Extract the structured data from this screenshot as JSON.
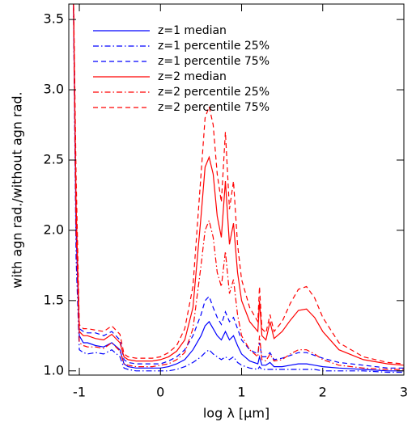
{
  "chart_data": {
    "type": "line",
    "xlabel": "log λ [μm]",
    "ylabel": "with agn rad./without agn rad.",
    "x": [
      -1.08,
      -1.04,
      -1.0,
      -0.95,
      -0.9,
      -0.8,
      -0.7,
      -0.6,
      -0.5,
      -0.45,
      -0.4,
      -0.3,
      -0.2,
      -0.1,
      0,
      0.1,
      0.2,
      0.3,
      0.4,
      0.5,
      0.55,
      0.6,
      0.65,
      0.7,
      0.75,
      0.8,
      0.85,
      0.9,
      0.95,
      1.0,
      1.1,
      1.2,
      1.22,
      1.25,
      1.3,
      1.35,
      1.4,
      1.5,
      1.6,
      1.7,
      1.8,
      1.9,
      2.0,
      2.2,
      2.5,
      2.8,
      3.0
    ],
    "series": [
      {
        "name": "z=1 median",
        "color": "#0000ff",
        "dash": "solid",
        "values": [
          4.0,
          2.0,
          1.25,
          1.2,
          1.2,
          1.18,
          1.17,
          1.2,
          1.15,
          1.05,
          1.03,
          1.02,
          1.02,
          1.02,
          1.02,
          1.03,
          1.05,
          1.08,
          1.15,
          1.25,
          1.32,
          1.35,
          1.3,
          1.25,
          1.22,
          1.28,
          1.22,
          1.25,
          1.18,
          1.12,
          1.07,
          1.05,
          1.1,
          1.04,
          1.04,
          1.06,
          1.03,
          1.03,
          1.04,
          1.05,
          1.05,
          1.04,
          1.03,
          1.02,
          1.01,
          1.0,
          1.0
        ]
      },
      {
        "name": "z=1 percentile 25%",
        "color": "#0000ff",
        "dash": "dashdot",
        "values": [
          4.0,
          1.8,
          1.15,
          1.13,
          1.12,
          1.13,
          1.12,
          1.15,
          1.1,
          1.02,
          1.01,
          1.0,
          1.0,
          1.0,
          1.0,
          1.0,
          1.01,
          1.03,
          1.06,
          1.1,
          1.13,
          1.15,
          1.12,
          1.1,
          1.08,
          1.1,
          1.08,
          1.1,
          1.06,
          1.04,
          1.02,
          1.01,
          1.03,
          1.01,
          1.01,
          1.01,
          1.01,
          1.01,
          1.01,
          1.01,
          1.01,
          1.01,
          1.0,
          1.0,
          1.0,
          0.99,
          0.99
        ]
      },
      {
        "name": "z=1 percentile 75%",
        "color": "#0000ff",
        "dash": "dashed",
        "values": [
          4.0,
          2.2,
          1.3,
          1.28,
          1.27,
          1.27,
          1.25,
          1.28,
          1.22,
          1.08,
          1.06,
          1.05,
          1.05,
          1.05,
          1.05,
          1.07,
          1.1,
          1.15,
          1.25,
          1.4,
          1.5,
          1.53,
          1.45,
          1.38,
          1.33,
          1.42,
          1.35,
          1.38,
          1.3,
          1.22,
          1.15,
          1.12,
          1.2,
          1.1,
          1.1,
          1.13,
          1.08,
          1.09,
          1.11,
          1.13,
          1.13,
          1.11,
          1.09,
          1.06,
          1.04,
          1.02,
          1.02
        ]
      },
      {
        "name": "z=2 median",
        "color": "#ff0000",
        "dash": "solid",
        "values": [
          4.0,
          2.2,
          1.28,
          1.25,
          1.25,
          1.23,
          1.22,
          1.26,
          1.2,
          1.1,
          1.08,
          1.07,
          1.07,
          1.07,
          1.08,
          1.1,
          1.14,
          1.22,
          1.45,
          2.1,
          2.45,
          2.52,
          2.4,
          2.1,
          1.95,
          2.35,
          1.9,
          2.05,
          1.7,
          1.5,
          1.35,
          1.28,
          1.5,
          1.25,
          1.22,
          1.35,
          1.23,
          1.28,
          1.36,
          1.43,
          1.44,
          1.38,
          1.28,
          1.15,
          1.08,
          1.05,
          1.04
        ]
      },
      {
        "name": "z=2 percentile 25%",
        "color": "#ff0000",
        "dash": "dashdot",
        "values": [
          4.0,
          2.0,
          1.2,
          1.18,
          1.17,
          1.17,
          1.16,
          1.2,
          1.14,
          1.05,
          1.04,
          1.03,
          1.03,
          1.03,
          1.04,
          1.05,
          1.08,
          1.13,
          1.3,
          1.75,
          2.0,
          2.07,
          1.95,
          1.7,
          1.6,
          1.85,
          1.55,
          1.65,
          1.4,
          1.25,
          1.15,
          1.1,
          1.25,
          1.08,
          1.07,
          1.12,
          1.07,
          1.08,
          1.12,
          1.15,
          1.15,
          1.12,
          1.08,
          1.04,
          1.02,
          1.01,
          1.01
        ]
      },
      {
        "name": "z=2 percentile 75%",
        "color": "#ff0000",
        "dash": "dashed",
        "values": [
          4.0,
          2.4,
          1.33,
          1.3,
          1.3,
          1.29,
          1.28,
          1.32,
          1.26,
          1.12,
          1.1,
          1.09,
          1.09,
          1.09,
          1.1,
          1.13,
          1.18,
          1.3,
          1.6,
          2.4,
          2.8,
          2.88,
          2.75,
          2.4,
          2.2,
          2.7,
          2.15,
          2.35,
          1.9,
          1.65,
          1.45,
          1.35,
          1.6,
          1.3,
          1.27,
          1.4,
          1.28,
          1.35,
          1.48,
          1.58,
          1.6,
          1.52,
          1.38,
          1.2,
          1.1,
          1.06,
          1.05
        ]
      }
    ],
    "xlim": [
      -1.13,
      3.0
    ],
    "ylim": [
      0.97,
      3.61
    ],
    "xticks": [
      -1,
      0,
      1,
      2,
      3
    ],
    "yticks": [
      {
        "value": 1,
        "label": "1.0"
      },
      1.5,
      {
        "value": 2,
        "label": "2.0"
      },
      2.5,
      {
        "value": 3,
        "label": "3.0"
      },
      3.5
    ],
    "legend": "upper-left"
  }
}
